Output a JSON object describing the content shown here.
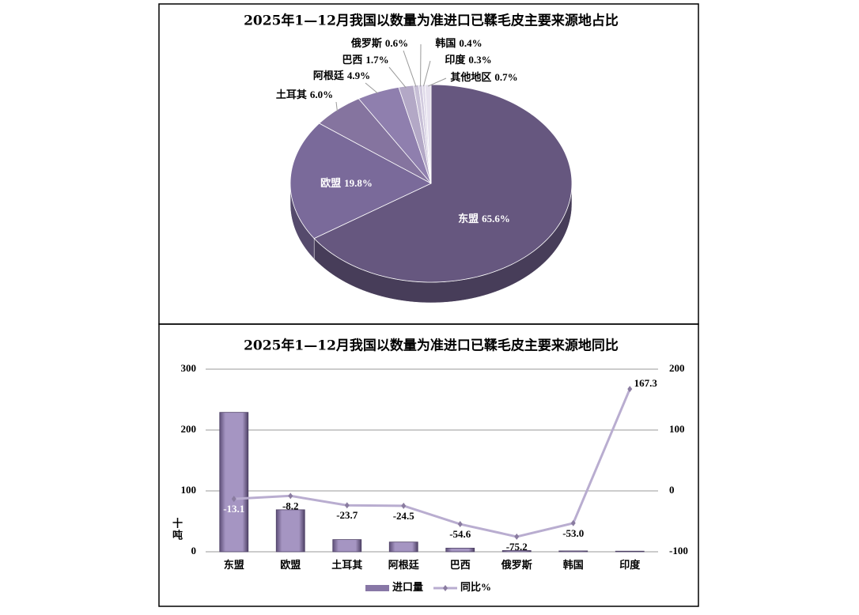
{
  "chart_data": [
    {
      "type": "pie",
      "title": "2025年1—12月我国以数量为准进口已鞣毛皮主要来源地占比",
      "categories": [
        "东盟",
        "欧盟",
        "土耳其",
        "阿根廷",
        "巴西",
        "俄罗斯",
        "韩国",
        "印度",
        "其他地区"
      ],
      "values": [
        65.6,
        19.8,
        6.0,
        4.9,
        1.7,
        0.6,
        0.4,
        0.3,
        0.7
      ],
      "value_labels": [
        "65.6%",
        "19.8%",
        "6.0%",
        "4.9%",
        "1.7%",
        "0.6%",
        "0.4%",
        "0.3%",
        "0.7%"
      ],
      "colors": [
        "#66577f",
        "#7a6a9a",
        "#85749f",
        "#8f7fae",
        "#b3a8c6",
        "#c7bfd6",
        "#d2cbdf",
        "#ddd7e8",
        "#e6e1ee"
      ]
    },
    {
      "type": "bar",
      "title": "2025年1—12月我国以数量为准进口已鞣毛皮主要来源地同比",
      "categories": [
        "东盟",
        "欧盟",
        "土耳其",
        "阿根廷",
        "巴西",
        "俄罗斯",
        "韩国",
        "印度"
      ],
      "series": [
        {
          "name": "进口量",
          "type": "bar",
          "color": "#8877a6",
          "values": [
            229,
            69,
            20,
            16,
            6,
            2,
            1.4,
            1
          ]
        },
        {
          "name": "同比%",
          "type": "line",
          "axis": "y2",
          "color": "#b9add0",
          "values": [
            -13.1,
            -8.2,
            -23.7,
            -24.5,
            -54.6,
            -75.2,
            -53.0,
            167.3
          ],
          "value_labels": [
            "-13.1",
            "-8.2",
            "-23.7",
            "-24.5",
            "-54.6",
            "-75.2",
            "-53.0",
            "167.3"
          ]
        }
      ],
      "ylabel": "十吨",
      "ylim": [
        0,
        300
      ],
      "yticks": [
        0,
        100,
        200,
        300
      ],
      "y2lim": [
        -100,
        200
      ],
      "y2ticks": [
        -100,
        0,
        100,
        200
      ],
      "grid": true,
      "legend": "bottom"
    }
  ]
}
